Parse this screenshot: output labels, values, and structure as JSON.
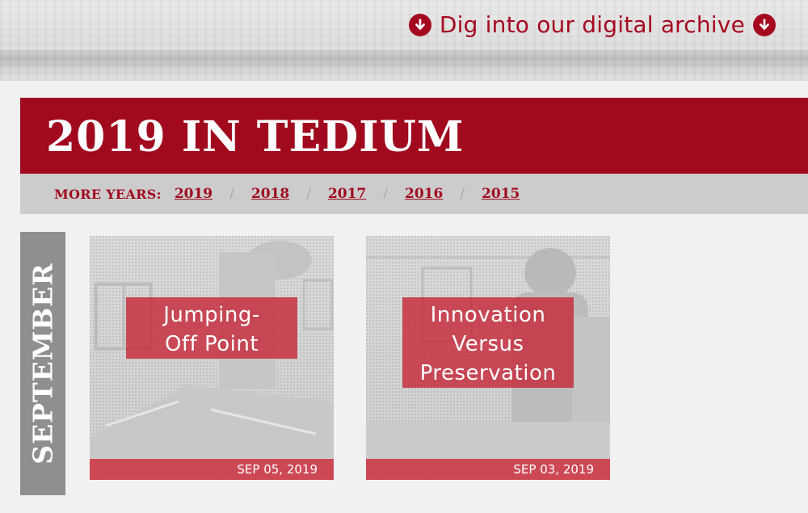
{
  "header": {
    "archive_link": "Dig into our digital archive"
  },
  "year_section": {
    "title": "2019 IN TEDIUM",
    "more_years_label": "MORE YEARS:",
    "years": [
      "2019",
      "2018",
      "2017",
      "2016",
      "2015"
    ],
    "separator": "/"
  },
  "month": {
    "label": "SEPTEMBER"
  },
  "articles": [
    {
      "title_line1": "Jumping-",
      "title_line2": "Off Point",
      "date": "SEP 05, 2019"
    },
    {
      "title_line1": "Innovation",
      "title_line2": "Versus",
      "title_line3": "Preservation",
      "date": "SEP 03, 2019"
    }
  ],
  "colors": {
    "brand_red": "#a10a1e",
    "card_overlay": "#c62a3a",
    "month_tab": "#8f8f8f"
  },
  "icons": [
    "arrow-down-circle-icon"
  ]
}
